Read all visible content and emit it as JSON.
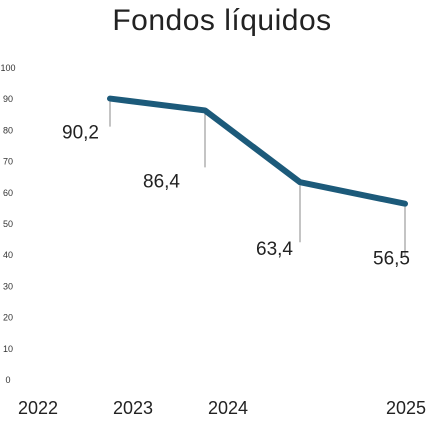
{
  "chart_data": {
    "type": "line",
    "title": "Fondos líquidos",
    "xlabel": "",
    "ylabel": "",
    "categories": [
      "2022",
      "2023",
      "2024",
      "2025"
    ],
    "series": [
      {
        "values": [
          90.2,
          86.4,
          63.4,
          56.5
        ],
        "labels": [
          "90,2",
          "86,4",
          "63,4",
          "56,5"
        ],
        "color": "#1c5a7a"
      }
    ],
    "ylim": [
      0,
      100
    ],
    "y_ticks": [
      0,
      10,
      20,
      30,
      40,
      50,
      60,
      70,
      80,
      90,
      100
    ],
    "grid": false,
    "legend": "none"
  }
}
